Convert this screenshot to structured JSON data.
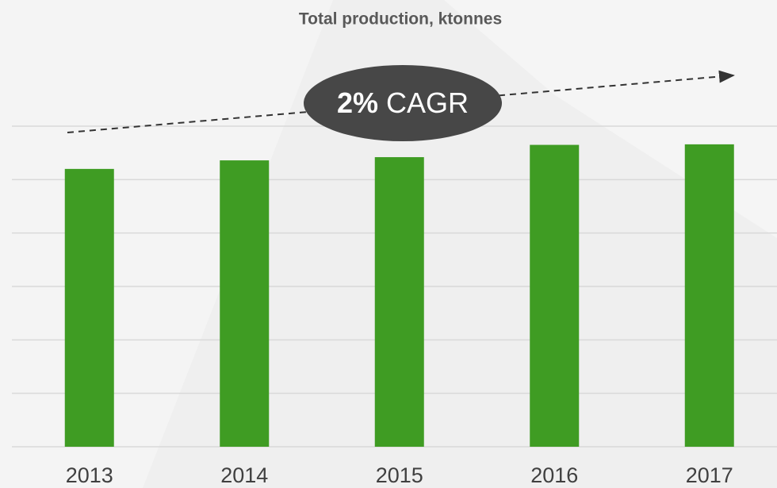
{
  "chart_data": {
    "type": "bar",
    "title": "Total production, ktonnes",
    "categories": [
      "2013",
      "2014",
      "2015",
      "2016",
      "2017"
    ],
    "values": [
      5.2,
      5.36,
      5.42,
      5.65,
      5.66
    ],
    "color": "#3f9c23",
    "ylim": [
      0,
      6
    ],
    "yticks": [
      0,
      1,
      2,
      3,
      4,
      5,
      6
    ],
    "grid": true,
    "annotation": {
      "value": "2%",
      "text": "CAGR"
    }
  }
}
